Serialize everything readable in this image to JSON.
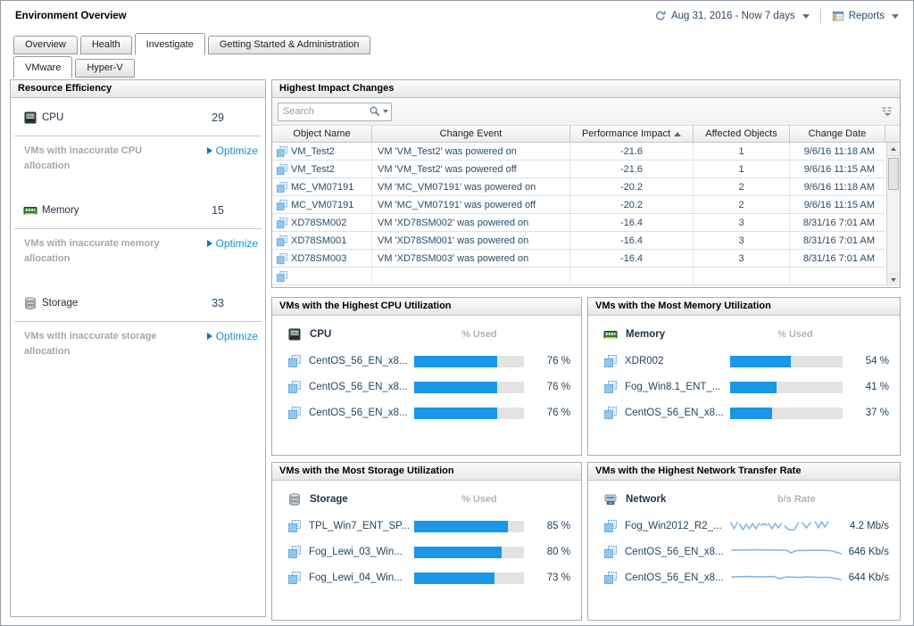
{
  "header": {
    "title": "Environment Overview",
    "time_range": "Aug 31, 2016 - Now 7 days",
    "reports_label": "Reports"
  },
  "tabs": {
    "main": [
      "Overview",
      "Health",
      "Investigate",
      "Getting Started & Administration"
    ],
    "active_main": "Investigate",
    "sub": [
      "VMware",
      "Hyper-V"
    ],
    "active_sub": "VMware"
  },
  "resource_efficiency": {
    "title": "Resource Efficiency",
    "groups": [
      {
        "icon": "cpu-icon",
        "label": "CPU",
        "value": "29",
        "note": "VMs with inaccurate CPU allocation",
        "action": "Optimize"
      },
      {
        "icon": "memory-icon",
        "label": "Memory",
        "value": "15",
        "note": "VMs with inaccurate memory allocation",
        "action": "Optimize"
      },
      {
        "icon": "storage-icon",
        "label": "Storage",
        "value": "33",
        "note": "VMs with inaccurate storage allocation",
        "action": "Optimize"
      }
    ]
  },
  "impact_changes": {
    "title": "Highest Impact Changes",
    "search_placeholder": "Search",
    "columns": [
      "Object Name",
      "Change Event",
      "Performance Impact",
      "Affected Objects",
      "Change Date"
    ],
    "sort": {
      "column": "Performance Impact",
      "direction": "ascending"
    },
    "rows": [
      {
        "object": "VM_Test2",
        "event": "VM 'VM_Test2' was powered on",
        "impact": "-21.6",
        "affected": "1",
        "date": "9/6/16 11:18 AM"
      },
      {
        "object": "VM_Test2",
        "event": "VM 'VM_Test2' was powered off",
        "impact": "-21.6",
        "affected": "1",
        "date": "9/6/16 11:15 AM"
      },
      {
        "object": "MC_VM07191",
        "event": "VM 'MC_VM07191' was powered on",
        "impact": "-20.2",
        "affected": "2",
        "date": "9/6/16 11:18 AM"
      },
      {
        "object": "MC_VM07191",
        "event": "VM 'MC_VM07191' was powered off",
        "impact": "-20.2",
        "affected": "2",
        "date": "9/6/16 11:15 AM"
      },
      {
        "object": "XD78SM002",
        "event": "VM 'XD78SM002' was powered on",
        "impact": "-16.4",
        "affected": "3",
        "date": "8/31/16 7:01 AM"
      },
      {
        "object": "XD78SM001",
        "event": "VM 'XD78SM001' was powered on",
        "impact": "-16.4",
        "affected": "3",
        "date": "8/31/16 7:01 AM"
      },
      {
        "object": "XD78SM003",
        "event": "VM 'XD78SM003' was powered on",
        "impact": "-16.4",
        "affected": "3",
        "date": "8/31/16 7:01 AM"
      }
    ]
  },
  "utilization_panels": {
    "cpu": {
      "title": "VMs with the Highest CPU Utilization",
      "metric": "CPU",
      "unit": "% Used",
      "rows": [
        {
          "name": "CentOS_56_EN_x8...",
          "percent": 76,
          "value": "76 %"
        },
        {
          "name": "CentOS_56_EN_x8...",
          "percent": 76,
          "value": "76 %"
        },
        {
          "name": "CentOS_56_EN_x8...",
          "percent": 76,
          "value": "76 %"
        }
      ]
    },
    "memory": {
      "title": "VMs with the Most Memory Utilization",
      "metric": "Memory",
      "unit": "% Used",
      "rows": [
        {
          "name": "XDR002",
          "percent": 54,
          "value": "54 %"
        },
        {
          "name": "Fog_Win8.1_ENT_...",
          "percent": 41,
          "value": "41 %"
        },
        {
          "name": "CentOS_56_EN_x8...",
          "percent": 37,
          "value": "37 %"
        }
      ]
    },
    "storage": {
      "title": "VMs with the Most Storage Utilization",
      "metric": "Storage",
      "unit": "% Used",
      "rows": [
        {
          "name": "TPL_Win7_ENT_SP...",
          "percent": 85,
          "value": "85 %"
        },
        {
          "name": "Fog_Lewi_03_Win...",
          "percent": 80,
          "value": "80 %"
        },
        {
          "name": "Fog_Lewi_04_Win...",
          "percent": 73,
          "value": "73 %"
        }
      ]
    },
    "network": {
      "title": "VMs with the Highest Network Transfer Rate",
      "metric": "Network",
      "unit": "b/s Rate",
      "rows": [
        {
          "name": "Fog_Win2012_R2_...",
          "spark": "jagged",
          "value": "4.2 Mb/s"
        },
        {
          "name": "CentOS_56_EN_x8...",
          "spark": "flat1",
          "value": "646 Kb/s"
        },
        {
          "name": "CentOS_56_EN_x8...",
          "spark": "flat2",
          "value": "644 Kb/s"
        }
      ]
    }
  },
  "colors": {
    "bar_blue": "#1a97e8",
    "link_blue": "#1592d8",
    "spark_blue": "#7fb4e4",
    "bar_track_gray": "#e3e3e3",
    "panel_border": "#aeaeae"
  }
}
